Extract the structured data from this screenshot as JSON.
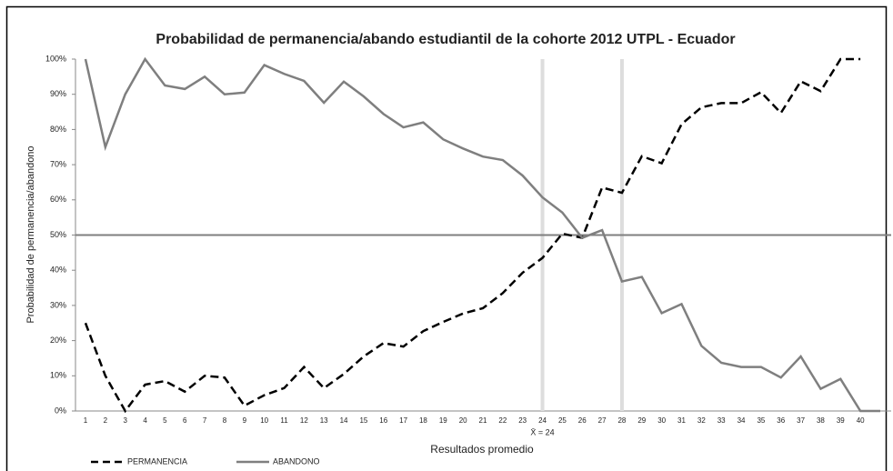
{
  "chart_data": {
    "type": "line",
    "title": "Probabilidad de permanencia/abando estudiantil de la cohorte 2012  UTPL - Ecuador",
    "x_label": "Resultados promedio",
    "y_label": "Probabilidad de permanencia/abandono",
    "categories": [
      "1",
      "2",
      "3",
      "4",
      "5",
      "6",
      "7",
      "8",
      "9",
      "10",
      "11",
      "12",
      "13",
      "14",
      "15",
      "16",
      "17",
      "18",
      "19",
      "20",
      "21",
      "22",
      "23",
      "24",
      "25",
      "26",
      "27",
      "28",
      "29",
      "30",
      "31",
      "32",
      "33",
      "34",
      "35",
      "36",
      "37",
      "38",
      "39",
      "40",
      null
    ],
    "series": [
      {
        "name": "PERMANENCIA",
        "color": "#000000",
        "dashed": true,
        "values": [
          25,
          10,
          0,
          7.5,
          8.5,
          5.5,
          10,
          9.5,
          1.5,
          4.5,
          6.5,
          12.5,
          6.5,
          10.5,
          15.5,
          19.3,
          18.3,
          22.7,
          25.3,
          27.7,
          29.2,
          33.5,
          39.3,
          43.5,
          50.4,
          49.2,
          63.5,
          62,
          72.4,
          70.4,
          81.5,
          86.3,
          87.5,
          87.5,
          90.6,
          84.7,
          93.7,
          90.9,
          100,
          100,
          null
        ]
      },
      {
        "name": "ABANDONO",
        "color": "#7f7f7f",
        "dashed": false,
        "values": [
          100,
          75,
          90,
          100,
          92.5,
          91.5,
          95,
          90,
          90.5,
          98.3,
          95.8,
          93.8,
          87.6,
          93.6,
          89.4,
          84.4,
          80.6,
          82,
          77.2,
          74.6,
          72.3,
          71.3,
          66.9,
          60.7,
          56.4,
          49.2,
          51.4,
          36.8,
          38.1,
          27.8,
          30.4,
          18.5,
          13.7,
          12.5,
          12.5,
          9.5,
          15.5,
          6.3,
          9.1,
          0,
          0
        ]
      }
    ],
    "ylim": [
      0,
      100
    ],
    "yticks": [
      {
        "value": 0,
        "label": "0%"
      },
      {
        "value": 10,
        "label": "10%"
      },
      {
        "value": 20,
        "label": "20%"
      },
      {
        "value": 30,
        "label": "30%"
      },
      {
        "value": 40,
        "label": "40%"
      },
      {
        "value": 50,
        "label": "50%"
      },
      {
        "value": 60,
        "label": "60%"
      },
      {
        "value": 70,
        "label": "70%"
      },
      {
        "value": 80,
        "label": "80%"
      },
      {
        "value": 90,
        "label": "90%"
      },
      {
        "value": 100,
        "label": "100%"
      }
    ],
    "reference_line": 50,
    "vertical_lines": [
      24,
      28
    ],
    "annotation": "X̄ = 24",
    "legend": "bottom-left"
  }
}
